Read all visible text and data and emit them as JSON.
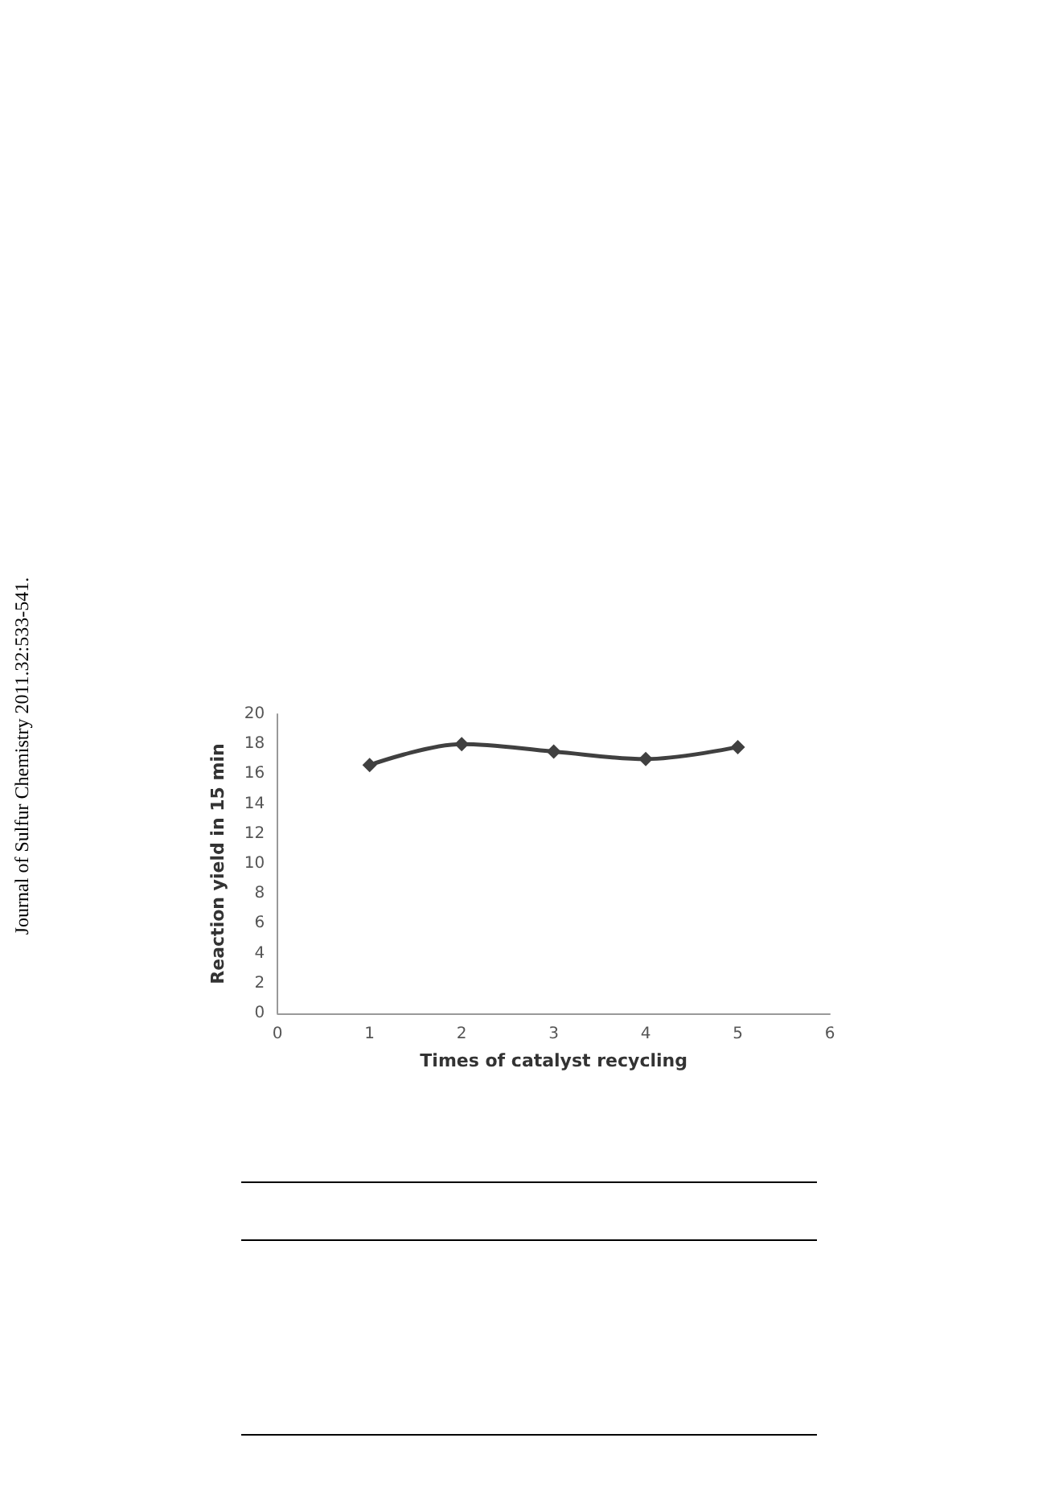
{
  "chart_data": {
    "type": "line",
    "xlabel": "Times of catalyst recycling",
    "ylabel": "Reaction yield in 15 min",
    "x": [
      1,
      2,
      3,
      4,
      5
    ],
    "series": [
      {
        "color": "#404040",
        "values": [
          16.6,
          18.0,
          17.5,
          17.0,
          17.8
        ]
      }
    ],
    "xlim": [
      0,
      6
    ],
    "xticks": [
      0,
      1,
      2,
      3,
      4,
      5,
      6
    ],
    "ylim": [
      0,
      20
    ],
    "yticks": [
      0,
      2,
      4,
      6,
      8,
      10,
      12,
      14,
      16,
      18,
      20
    ],
    "grid": false,
    "marker": "diamond",
    "line_style": "solid",
    "annotations": [
      "Journal of Sulfur Chemistry 2011.32:533-541."
    ]
  }
}
